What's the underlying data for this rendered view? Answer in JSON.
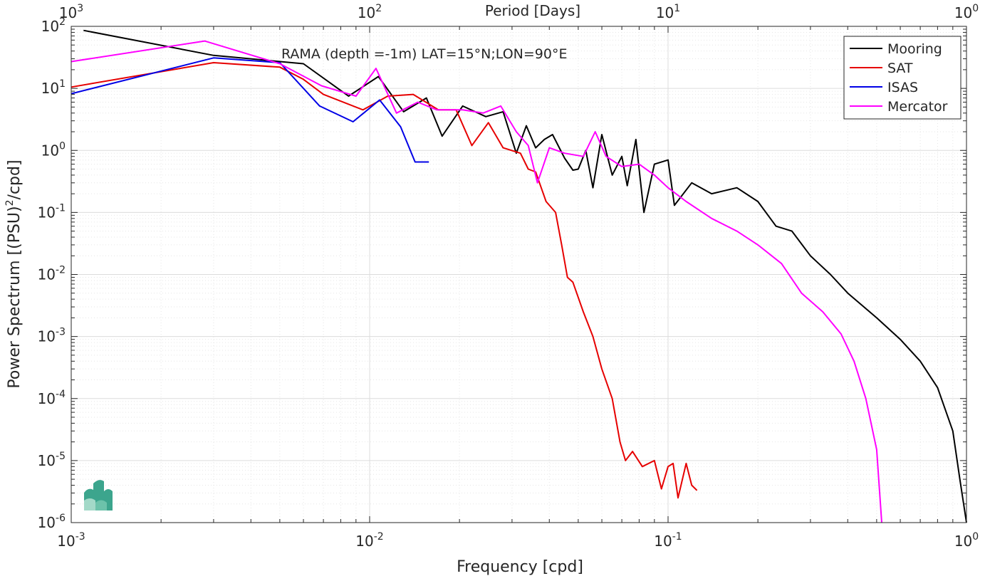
{
  "chart_data": {
    "type": "line",
    "title": "RAMA (depth =-1m) LAT=15°N;LON=90°E",
    "xlabel": "Frequency [cpd]",
    "ylabel": "Power Spectrum [(PSU)",
    "ylabel_sup": "2",
    "ylabel_tail": "/cpd]",
    "top_xlabel": "Period [Days]",
    "x_scale": "log",
    "y_scale": "log",
    "xlim": [
      0.001,
      1
    ],
    "ylim": [
      1e-06,
      100
    ],
    "grid": true,
    "legend_position": "top-right",
    "x_ticks": [
      {
        "value": 0.001,
        "base": "10",
        "exp": "-3"
      },
      {
        "value": 0.01,
        "base": "10",
        "exp": "-2"
      },
      {
        "value": 0.1,
        "base": "10",
        "exp": "-1"
      },
      {
        "value": 1,
        "base": "10",
        "exp": "0"
      }
    ],
    "top_ticks": [
      {
        "value": 0.001,
        "base": "10",
        "exp": "3"
      },
      {
        "value": 0.01,
        "base": "10",
        "exp": "2"
      },
      {
        "value": 0.1,
        "base": "10",
        "exp": "1"
      },
      {
        "value": 1,
        "base": "10",
        "exp": "0"
      }
    ],
    "y_ticks": [
      {
        "value": 100,
        "base": "10",
        "exp": "2"
      },
      {
        "value": 10,
        "base": "10",
        "exp": "1"
      },
      {
        "value": 1,
        "base": "10",
        "exp": "0"
      },
      {
        "value": 0.1,
        "base": "10",
        "exp": "-1"
      },
      {
        "value": 0.01,
        "base": "10",
        "exp": "-2"
      },
      {
        "value": 0.001,
        "base": "10",
        "exp": "-3"
      },
      {
        "value": 0.0001,
        "base": "10",
        "exp": "-4"
      },
      {
        "value": 1e-05,
        "base": "10",
        "exp": "-5"
      },
      {
        "value": 1e-06,
        "base": "10",
        "exp": "-6"
      }
    ],
    "series": [
      {
        "name": "Mooring",
        "color": "#000000",
        "points": [
          [
            0.0011,
            86
          ],
          [
            0.003,
            34
          ],
          [
            0.006,
            25
          ],
          [
            0.0085,
            7.5
          ],
          [
            0.0107,
            15.5
          ],
          [
            0.013,
            4.2
          ],
          [
            0.0155,
            7
          ],
          [
            0.0175,
            1.7
          ],
          [
            0.0205,
            5.2
          ],
          [
            0.0245,
            3.5
          ],
          [
            0.028,
            4.2
          ],
          [
            0.031,
            0.9
          ],
          [
            0.0335,
            2.5
          ],
          [
            0.036,
            1.1
          ],
          [
            0.0385,
            1.5
          ],
          [
            0.041,
            1.8
          ],
          [
            0.045,
            0.75
          ],
          [
            0.048,
            0.48
          ],
          [
            0.05,
            0.5
          ],
          [
            0.053,
            1
          ],
          [
            0.056,
            0.25
          ],
          [
            0.06,
            1.8
          ],
          [
            0.065,
            0.4
          ],
          [
            0.07,
            0.8
          ],
          [
            0.073,
            0.27
          ],
          [
            0.078,
            1.5
          ],
          [
            0.083,
            0.1
          ],
          [
            0.09,
            0.6
          ],
          [
            0.1,
            0.7
          ],
          [
            0.105,
            0.13
          ],
          [
            0.12,
            0.3
          ],
          [
            0.14,
            0.2
          ],
          [
            0.17,
            0.25
          ],
          [
            0.2,
            0.15
          ],
          [
            0.23,
            0.06
          ],
          [
            0.26,
            0.05
          ],
          [
            0.3,
            0.02
          ],
          [
            0.35,
            0.01
          ],
          [
            0.4,
            0.005
          ],
          [
            0.5,
            0.002
          ],
          [
            0.6,
            0.0009
          ],
          [
            0.7,
            0.0004
          ],
          [
            0.8,
            0.00015
          ],
          [
            0.9,
            3e-05
          ],
          [
            0.95,
            5e-06
          ],
          [
            1.0,
            1e-06
          ]
        ]
      },
      {
        "name": "SAT",
        "color": "#e60000",
        "points": [
          [
            0.001,
            10.5
          ],
          [
            0.003,
            26
          ],
          [
            0.005,
            22
          ],
          [
            0.006,
            14
          ],
          [
            0.007,
            8
          ],
          [
            0.0095,
            4.5
          ],
          [
            0.0115,
            7.5
          ],
          [
            0.014,
            8
          ],
          [
            0.017,
            4.5
          ],
          [
            0.0195,
            4.5
          ],
          [
            0.022,
            1.2
          ],
          [
            0.025,
            2.8
          ],
          [
            0.028,
            1.1
          ],
          [
            0.032,
            0.9
          ],
          [
            0.034,
            0.5
          ],
          [
            0.036,
            0.45
          ],
          [
            0.039,
            0.15
          ],
          [
            0.042,
            0.1
          ],
          [
            0.044,
            0.03
          ],
          [
            0.046,
            0.009
          ],
          [
            0.048,
            0.0075
          ],
          [
            0.052,
            0.0025
          ],
          [
            0.056,
            0.001
          ],
          [
            0.06,
            0.0003
          ],
          [
            0.065,
            0.0001
          ],
          [
            0.069,
            2e-05
          ],
          [
            0.072,
            1e-05
          ],
          [
            0.076,
            1.4e-05
          ],
          [
            0.082,
            8e-06
          ],
          [
            0.09,
            1e-05
          ],
          [
            0.095,
            3.5e-06
          ],
          [
            0.1,
            8e-06
          ],
          [
            0.104,
            9e-06
          ],
          [
            0.108,
            2.5e-06
          ],
          [
            0.115,
            9e-06
          ],
          [
            0.12,
            4e-06
          ],
          [
            0.125,
            3.3e-06
          ]
        ]
      },
      {
        "name": "ISAS",
        "color": "#0000e6",
        "points": [
          [
            0.001,
            8.2
          ],
          [
            0.003,
            31
          ],
          [
            0.005,
            26
          ],
          [
            0.0068,
            5.2
          ],
          [
            0.0088,
            2.9
          ],
          [
            0.0108,
            6.5
          ],
          [
            0.0127,
            2.4
          ],
          [
            0.0142,
            0.65
          ],
          [
            0.0158,
            0.65
          ]
        ]
      },
      {
        "name": "Mercator",
        "color": "#ff00ff",
        "points": [
          [
            0.001,
            27
          ],
          [
            0.0028,
            58
          ],
          [
            0.005,
            25
          ],
          [
            0.0069,
            11
          ],
          [
            0.009,
            7.5
          ],
          [
            0.0105,
            21
          ],
          [
            0.0123,
            4
          ],
          [
            0.0145,
            6
          ],
          [
            0.0168,
            4.5
          ],
          [
            0.0205,
            4.5
          ],
          [
            0.024,
            4
          ],
          [
            0.0275,
            5.2
          ],
          [
            0.031,
            2
          ],
          [
            0.034,
            1.2
          ],
          [
            0.0365,
            0.3
          ],
          [
            0.04,
            1.1
          ],
          [
            0.045,
            0.9
          ],
          [
            0.052,
            0.8
          ],
          [
            0.057,
            2
          ],
          [
            0.062,
            0.8
          ],
          [
            0.07,
            0.55
          ],
          [
            0.08,
            0.6
          ],
          [
            0.09,
            0.4
          ],
          [
            0.1,
            0.25
          ],
          [
            0.115,
            0.15
          ],
          [
            0.14,
            0.08
          ],
          [
            0.17,
            0.05
          ],
          [
            0.2,
            0.03
          ],
          [
            0.24,
            0.015
          ],
          [
            0.28,
            0.005
          ],
          [
            0.33,
            0.0025
          ],
          [
            0.38,
            0.0011
          ],
          [
            0.42,
            0.0004
          ],
          [
            0.46,
            0.0001
          ],
          [
            0.5,
            1.5e-05
          ],
          [
            0.52,
            1e-06
          ]
        ]
      }
    ]
  }
}
